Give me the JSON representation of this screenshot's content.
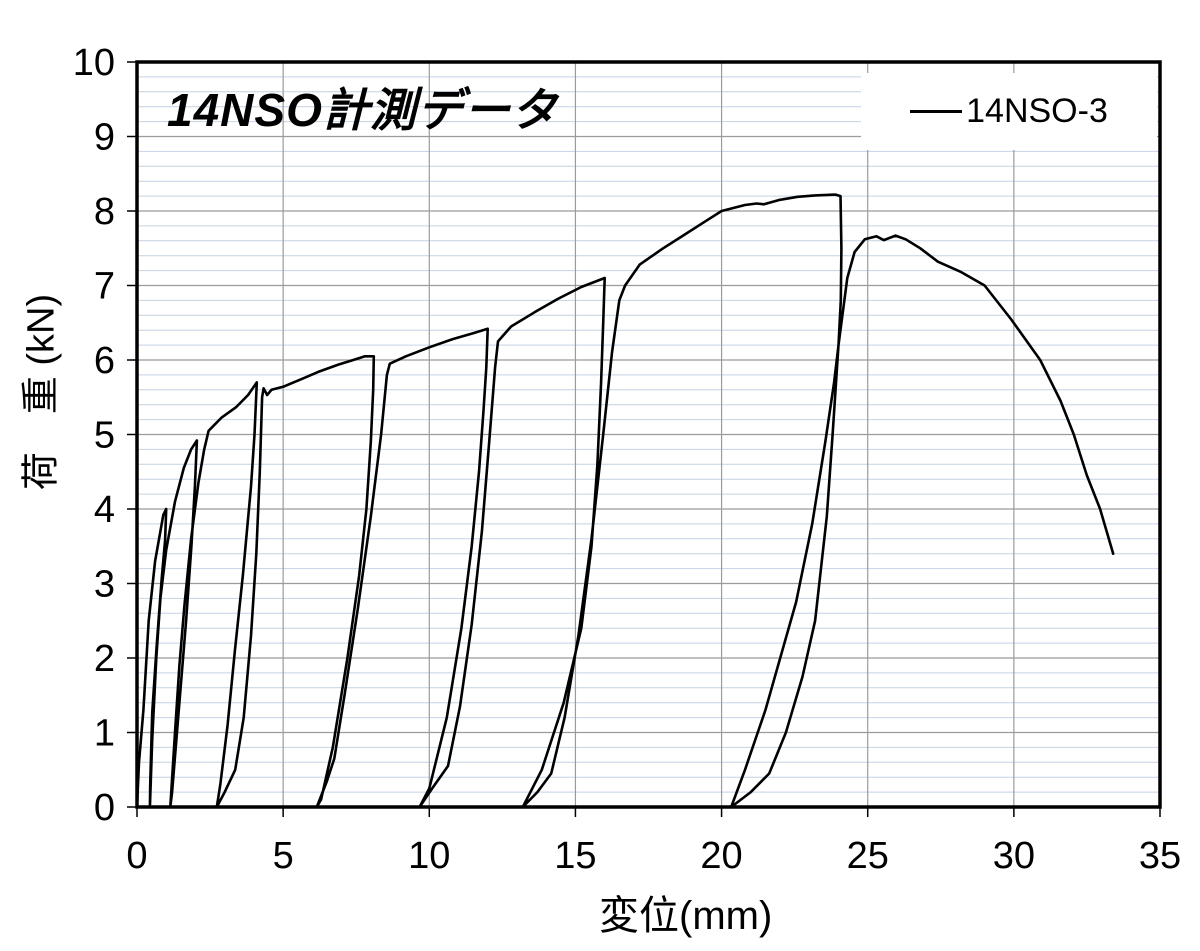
{
  "chart_data": {
    "type": "line",
    "title": "14NSO計測データ",
    "xlabel": "変位(mm)",
    "ylabel": "荷　重 (kN)",
    "xlim": [
      0,
      35
    ],
    "ylim": [
      0,
      10
    ],
    "x_ticks": [
      0,
      5,
      10,
      15,
      20,
      25,
      30,
      35
    ],
    "y_ticks": [
      0,
      1,
      2,
      3,
      4,
      5,
      6,
      7,
      8,
      9,
      10
    ],
    "grid": {
      "x_major_step": 5,
      "y_major_step": 1,
      "y_minor_step": 0.2,
      "x_minor": false
    },
    "legend_position": "top-right",
    "colors": {
      "background": "#ffffff",
      "border": "#000000",
      "major_grid": "#9b9b9b",
      "minor_grid": "#c4d2e6"
    },
    "series": [
      {
        "name": "14NSO-3",
        "color": "#000000",
        "description": "cyclic load-displacement curve: load/unload loops with peaks ~4.0, 4.9, 5.7, 6.05, 6.4, 7.1, 8.2 kN then final peak 7.65 kN and softening tail to (33.4, 3.4)",
        "points": [
          [
            0,
            0
          ],
          [
            0.07,
            0.6
          ],
          [
            0.22,
            1.3
          ],
          [
            0.4,
            2.5
          ],
          [
            0.62,
            3.3
          ],
          [
            0.9,
            3.92
          ],
          [
            1.0,
            4.0
          ],
          [
            0.96,
            3.58
          ],
          [
            0.84,
            3.05
          ],
          [
            0.67,
            2.15
          ],
          [
            0.52,
            1.26
          ],
          [
            0.45,
            0.3
          ],
          [
            0.44,
            0
          ],
          [
            0.52,
            0.9
          ],
          [
            0.66,
            2.0
          ],
          [
            0.8,
            2.8
          ],
          [
            1.0,
            3.45
          ],
          [
            1.3,
            4.1
          ],
          [
            1.6,
            4.55
          ],
          [
            1.85,
            4.8
          ],
          [
            2.05,
            4.92
          ],
          [
            1.98,
            4.3
          ],
          [
            1.86,
            3.5
          ],
          [
            1.68,
            2.5
          ],
          [
            1.45,
            1.4
          ],
          [
            1.2,
            0.2
          ],
          [
            1.14,
            0
          ],
          [
            1.3,
            1.0
          ],
          [
            1.45,
            1.9
          ],
          [
            1.62,
            2.7
          ],
          [
            1.85,
            3.6
          ],
          [
            2.1,
            4.35
          ],
          [
            2.3,
            4.8
          ],
          [
            2.45,
            5.05
          ],
          [
            2.9,
            5.23
          ],
          [
            3.4,
            5.37
          ],
          [
            3.8,
            5.53
          ],
          [
            4.1,
            5.7
          ],
          [
            4.02,
            5.0
          ],
          [
            3.9,
            4.3
          ],
          [
            3.62,
            3.1
          ],
          [
            3.35,
            2.1
          ],
          [
            3.1,
            1.1
          ],
          [
            2.85,
            0.3
          ],
          [
            2.73,
            0
          ],
          [
            3.0,
            0.2
          ],
          [
            3.36,
            0.5
          ],
          [
            3.65,
            1.2
          ],
          [
            3.9,
            2.3
          ],
          [
            4.08,
            3.4
          ],
          [
            4.2,
            4.5
          ],
          [
            4.28,
            5.5
          ],
          [
            4.33,
            5.62
          ],
          [
            4.45,
            5.53
          ],
          [
            4.6,
            5.6
          ],
          [
            5.0,
            5.64
          ],
          [
            5.6,
            5.74
          ],
          [
            6.2,
            5.84
          ],
          [
            6.9,
            5.94
          ],
          [
            7.4,
            6.0
          ],
          [
            7.8,
            6.05
          ],
          [
            8.1,
            6.05
          ],
          [
            8.08,
            5.6
          ],
          [
            8.0,
            4.9
          ],
          [
            7.85,
            4.0
          ],
          [
            7.6,
            3.1
          ],
          [
            7.2,
            2.0
          ],
          [
            6.7,
            0.8
          ],
          [
            6.3,
            0.1
          ],
          [
            6.15,
            0
          ],
          [
            6.5,
            0.35
          ],
          [
            6.75,
            0.65
          ],
          [
            7.1,
            1.5
          ],
          [
            7.55,
            2.65
          ],
          [
            8.0,
            3.9
          ],
          [
            8.35,
            5.0
          ],
          [
            8.55,
            5.8
          ],
          [
            8.65,
            5.95
          ],
          [
            9.2,
            6.05
          ],
          [
            10.0,
            6.17
          ],
          [
            10.8,
            6.28
          ],
          [
            11.5,
            6.36
          ],
          [
            12.0,
            6.42
          ],
          [
            11.95,
            5.9
          ],
          [
            11.85,
            5.3
          ],
          [
            11.7,
            4.5
          ],
          [
            11.45,
            3.5
          ],
          [
            11.1,
            2.4
          ],
          [
            10.6,
            1.2
          ],
          [
            10.0,
            0.25
          ],
          [
            9.67,
            0
          ],
          [
            10.1,
            0.25
          ],
          [
            10.64,
            0.55
          ],
          [
            11.05,
            1.35
          ],
          [
            11.45,
            2.45
          ],
          [
            11.8,
            3.7
          ],
          [
            12.05,
            4.9
          ],
          [
            12.25,
            5.9
          ],
          [
            12.35,
            6.25
          ],
          [
            12.8,
            6.45
          ],
          [
            13.6,
            6.64
          ],
          [
            14.4,
            6.82
          ],
          [
            15.2,
            6.98
          ],
          [
            16.0,
            7.1
          ],
          [
            15.95,
            6.5
          ],
          [
            15.88,
            5.7
          ],
          [
            15.75,
            4.6
          ],
          [
            15.55,
            3.5
          ],
          [
            15.2,
            2.4
          ],
          [
            14.6,
            1.4
          ],
          [
            13.85,
            0.5
          ],
          [
            13.2,
            0
          ],
          [
            13.7,
            0.2
          ],
          [
            14.17,
            0.45
          ],
          [
            14.63,
            1.2
          ],
          [
            15.1,
            2.3
          ],
          [
            15.55,
            3.6
          ],
          [
            15.95,
            5.0
          ],
          [
            16.25,
            6.1
          ],
          [
            16.5,
            6.8
          ],
          [
            16.7,
            7.0
          ],
          [
            17.2,
            7.28
          ],
          [
            18.0,
            7.5
          ],
          [
            18.6,
            7.65
          ],
          [
            19.4,
            7.85
          ],
          [
            20.0,
            8.0
          ],
          [
            20.8,
            8.08
          ],
          [
            21.2,
            8.1
          ],
          [
            21.45,
            8.09
          ],
          [
            22.0,
            8.15
          ],
          [
            22.6,
            8.19
          ],
          [
            23.2,
            8.21
          ],
          [
            23.9,
            8.22
          ],
          [
            24.07,
            8.2
          ],
          [
            24.1,
            7.5
          ],
          [
            24.08,
            6.8
          ],
          [
            24.0,
            6.2
          ],
          [
            23.85,
            5.7
          ],
          [
            23.55,
            4.9
          ],
          [
            23.1,
            3.8
          ],
          [
            22.55,
            2.75
          ],
          [
            21.5,
            1.3
          ],
          [
            20.8,
            0.5
          ],
          [
            20.33,
            0
          ],
          [
            21.0,
            0.2
          ],
          [
            21.63,
            0.45
          ],
          [
            22.2,
            1.0
          ],
          [
            22.77,
            1.75
          ],
          [
            23.2,
            2.5
          ],
          [
            23.6,
            3.9
          ],
          [
            23.8,
            5.0
          ],
          [
            24.0,
            6.2
          ],
          [
            24.3,
            7.1
          ],
          [
            24.55,
            7.45
          ],
          [
            24.9,
            7.62
          ],
          [
            25.3,
            7.66
          ],
          [
            25.55,
            7.61
          ],
          [
            25.95,
            7.67
          ],
          [
            26.3,
            7.62
          ],
          [
            26.8,
            7.5
          ],
          [
            27.4,
            7.32
          ],
          [
            28.2,
            7.18
          ],
          [
            29.0,
            7.0
          ],
          [
            29.9,
            6.55
          ],
          [
            30.9,
            6.0
          ],
          [
            31.6,
            5.45
          ],
          [
            32.05,
            5.0
          ],
          [
            32.5,
            4.45
          ],
          [
            32.95,
            4.0
          ],
          [
            33.4,
            3.4
          ]
        ]
      }
    ]
  }
}
